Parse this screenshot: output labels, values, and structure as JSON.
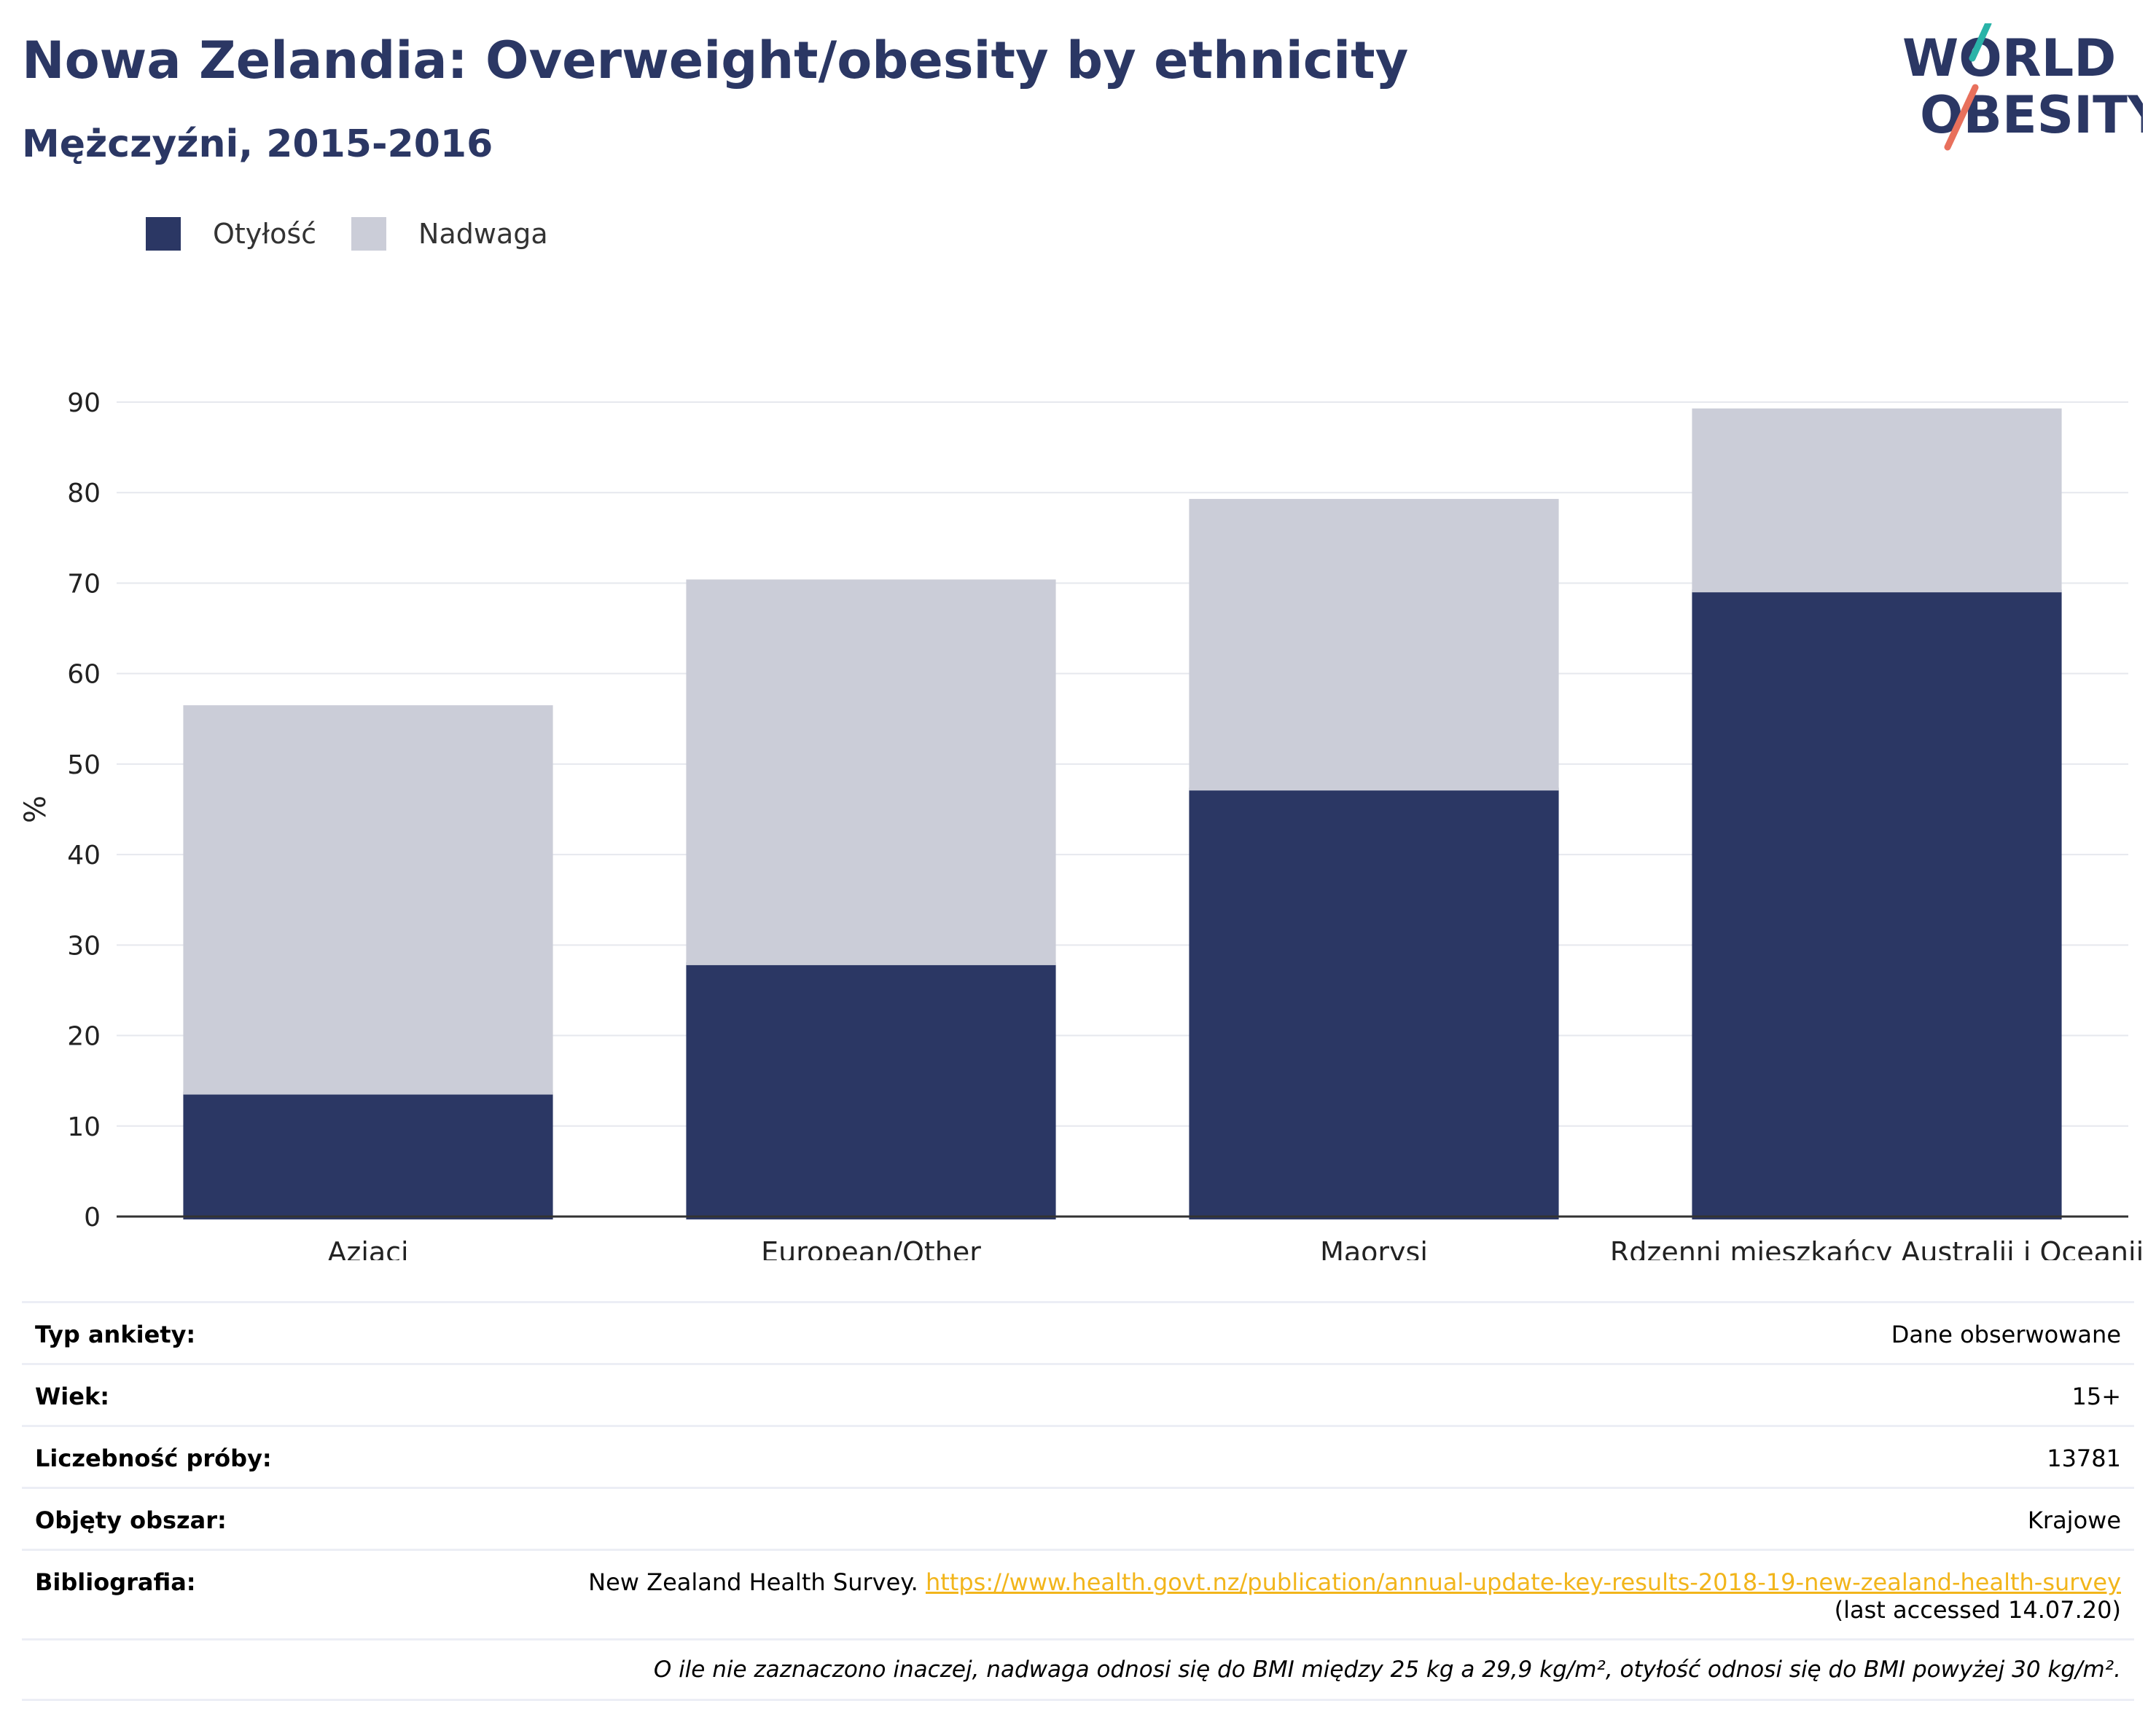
{
  "header": {
    "title": "Nowa Zelandia: Overweight/obesity by ethnicity",
    "subtitle": "Mężczyźni, 2015-2016"
  },
  "logo": {
    "line1": "WORLD",
    "line2": "OBESITY",
    "accent_teal": "#2ab3a8",
    "accent_coral": "#e8705c"
  },
  "legend": [
    {
      "label": "Otyłość",
      "color": "#2b3764"
    },
    {
      "label": "Nadwaga",
      "color": "#cbcdd8"
    }
  ],
  "chart_data": {
    "type": "bar",
    "stacked": true,
    "categories": [
      "Azjaci",
      "European/Other",
      "Maorysi",
      "Rdzenni mieszkańcy Australii i Oceanii"
    ],
    "series": [
      {
        "name": "Otyłość",
        "color": "#2b3764",
        "values": [
          13.8,
          28.1,
          47.4,
          69.3
        ]
      },
      {
        "name": "Nadwaga",
        "color": "#cbcdd8",
        "values": [
          42.7,
          42.3,
          31.9,
          20.0
        ]
      }
    ],
    "ylabel": "%",
    "ylim": [
      0,
      90
    ],
    "yticks": [
      0,
      10,
      20,
      30,
      40,
      50,
      60,
      70,
      80,
      90
    ],
    "grid": true
  },
  "info": {
    "rows": [
      {
        "key": "Typ ankiety:",
        "value": "Dane obserwowane"
      },
      {
        "key": "Wiek:",
        "value": "15+"
      },
      {
        "key": "Liczebność próby:",
        "value": "13781"
      },
      {
        "key": "Objęty obszar:",
        "value": "Krajowe"
      }
    ],
    "bibliography": {
      "key": "Bibliografia:",
      "source": "New Zealand Health Survey. ",
      "link": "https://www.health.govt.nz/publication/annual-update-key-results-2018-19-new-zealand-health-survey",
      "accessed": "(last accessed 14.07.20)"
    },
    "note": "O ile nie zaznaczono inaczej, nadwaga odnosi się do BMI między 25 kg a 29,9 kg/m², otyłość odnosi się do BMI powyżej 30 kg/m²."
  }
}
